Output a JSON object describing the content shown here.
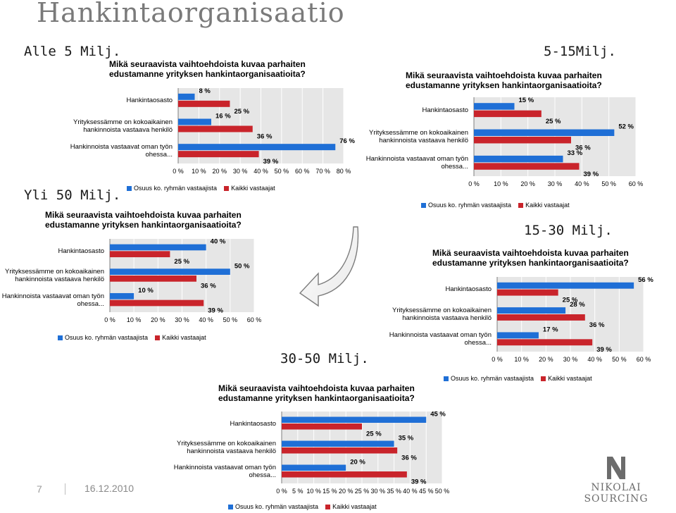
{
  "slide": {
    "title": "Hankintaorganisaatio",
    "page_number": "7",
    "date": "16.12.2010",
    "logo_text": "NIKOLAI SOURCING"
  },
  "colors": {
    "blue": "#1f6fd6",
    "red": "#c9242b",
    "plot_bg": "#e6e6e6"
  },
  "segment_labels": {
    "alle5": "Alle 5 Milj.",
    "m5_15": "5-15Milj.",
    "yli50": "Yli 50 Milj.",
    "m15_30": "15-30 Milj.",
    "m30_50": "30-50 Milj."
  },
  "chart_data": [
    {
      "id": "alle5",
      "type": "bar",
      "orientation": "horizontal",
      "title": "Mikä seuraavista vaihtoehdoista kuvaa parhaiten\nedustamanne yrityksen hankintaorganisaatioita?",
      "categories": [
        "Hankintaosasto",
        "Yrityksessämme on kokoaikainen\nhankinnoista vastaava henkilö",
        "Hankinnoista vastaavat oman työn\nohessa..."
      ],
      "series": [
        {
          "name": "Osuus ko. ryhmän vastaajista",
          "values": [
            8,
            16,
            76
          ]
        },
        {
          "name": "Kaikki vastaajat",
          "values": [
            25,
            36,
            39
          ]
        }
      ],
      "xlim": [
        0,
        80
      ],
      "ticks": [
        0,
        10,
        20,
        30,
        40,
        50,
        60,
        70,
        80
      ],
      "tick_labels": [
        "0 %",
        "10 %",
        "20 %",
        "30 %",
        "40 %",
        "50 %",
        "60 %",
        "70 %",
        "80 %"
      ],
      "data_labels": [
        [
          "8 %",
          "16 %",
          "76 %"
        ],
        [
          "25 %",
          "36 %",
          "39 %"
        ]
      ],
      "grid": true,
      "legend_position": "bottom"
    },
    {
      "id": "m5_15",
      "type": "bar",
      "orientation": "horizontal",
      "title": "Mikä seuraavista vaihtoehdoista kuvaa parhaiten\nedustamanne yrityksen hankintaorganisaatioita?",
      "categories": [
        "Hankintaosasto",
        "Yrityksessämme on kokoaikainen\nhankinnoista vastaava henkilö",
        "Hankinnoista vastaavat oman työn\nohessa..."
      ],
      "series": [
        {
          "name": "Osuus ko. ryhmän vastaajista",
          "values": [
            15,
            52,
            33
          ]
        },
        {
          "name": "Kaikki vastaajat",
          "values": [
            25,
            36,
            39
          ]
        }
      ],
      "xlim": [
        0,
        60
      ],
      "ticks": [
        0,
        10,
        20,
        30,
        40,
        50,
        60
      ],
      "tick_labels": [
        "0 %",
        "10 %",
        "20 %",
        "30 %",
        "40 %",
        "50 %",
        "60 %"
      ],
      "data_labels": [
        [
          "15 %",
          "52 %",
          "33 %"
        ],
        [
          "25 %",
          "36 %",
          "39 %"
        ]
      ],
      "grid": true,
      "legend_position": "bottom"
    },
    {
      "id": "yli50",
      "type": "bar",
      "orientation": "horizontal",
      "title": "Mikä seuraavista vaihtoehdoista kuvaa parhaiten\nedustamanne yrityksen hankintaorganisaatioita?",
      "categories": [
        "Hankintaosasto",
        "Yrityksessämme on kokoaikainen\nhankinnoista vastaava henkilö",
        "Hankinnoista vastaavat oman työn\nohessa..."
      ],
      "series": [
        {
          "name": "Osuus ko. ryhmän vastaajista",
          "values": [
            40,
            50,
            10
          ]
        },
        {
          "name": "Kaikki vastaajat",
          "values": [
            25,
            36,
            39
          ]
        }
      ],
      "xlim": [
        0,
        60
      ],
      "ticks": [
        0,
        10,
        20,
        30,
        40,
        50,
        60
      ],
      "tick_labels": [
        "0 %",
        "10 %",
        "20 %",
        "30 %",
        "40 %",
        "50 %",
        "60 %"
      ],
      "data_labels": [
        [
          "40 %",
          "50 %",
          "10 %"
        ],
        [
          "25 %",
          "36 %",
          "39 %"
        ]
      ],
      "grid": true,
      "legend_position": "bottom"
    },
    {
      "id": "m15_30",
      "type": "bar",
      "orientation": "horizontal",
      "title": "Mikä seuraavista vaihtoehdoista kuvaa parhaiten\nedustamanne yrityksen hankintaorganisaatioita?",
      "categories": [
        "Hankintaosasto",
        "Yrityksessämme on kokoaikainen\nhankinnoista vastaava henkilö",
        "Hankinnoista vastaavat oman työn\nohessa..."
      ],
      "series": [
        {
          "name": "Osuus ko. ryhmän vastaajista",
          "values": [
            56,
            28,
            17
          ]
        },
        {
          "name": "Kaikki vastaajat",
          "values": [
            25,
            36,
            39
          ]
        }
      ],
      "xlim": [
        0,
        60
      ],
      "ticks": [
        0,
        10,
        20,
        30,
        40,
        50,
        60
      ],
      "tick_labels": [
        "0 %",
        "10 %",
        "20 %",
        "30 %",
        "40 %",
        "50 %",
        "60 %"
      ],
      "data_labels": [
        [
          "56 %",
          "28 %",
          "17 %"
        ],
        [
          "25 %",
          "36 %",
          "39 %"
        ]
      ],
      "grid": true,
      "legend_position": "bottom"
    },
    {
      "id": "m30_50",
      "type": "bar",
      "orientation": "horizontal",
      "title": "Mikä seuraavista vaihtoehdoista kuvaa parhaiten\nedustamanne yrityksen hankintaorganisaatioita?",
      "categories": [
        "Hankintaosasto",
        "Yrityksessämme on kokoaikainen\nhankinnoista vastaava henkilö",
        "Hankinnoista vastaavat oman työn\nohessa..."
      ],
      "series": [
        {
          "name": "Osuus ko. ryhmän vastaajista",
          "values": [
            45,
            35,
            20
          ]
        },
        {
          "name": "Kaikki vastaajat",
          "values": [
            25,
            36,
            39
          ]
        }
      ],
      "xlim": [
        0,
        50
      ],
      "ticks": [
        0,
        5,
        10,
        15,
        20,
        25,
        30,
        35,
        40,
        45,
        50
      ],
      "tick_labels": [
        "0 %",
        "5 %",
        "10 %",
        "15 %",
        "20 %",
        "25 %",
        "30 %",
        "35 %",
        "40 %",
        "45 %",
        "50 %"
      ],
      "data_labels": [
        [
          "45 %",
          "35 %",
          "20 %"
        ],
        [
          "25 %",
          "36 %",
          "39 %"
        ]
      ],
      "grid": true,
      "legend_position": "bottom"
    }
  ]
}
